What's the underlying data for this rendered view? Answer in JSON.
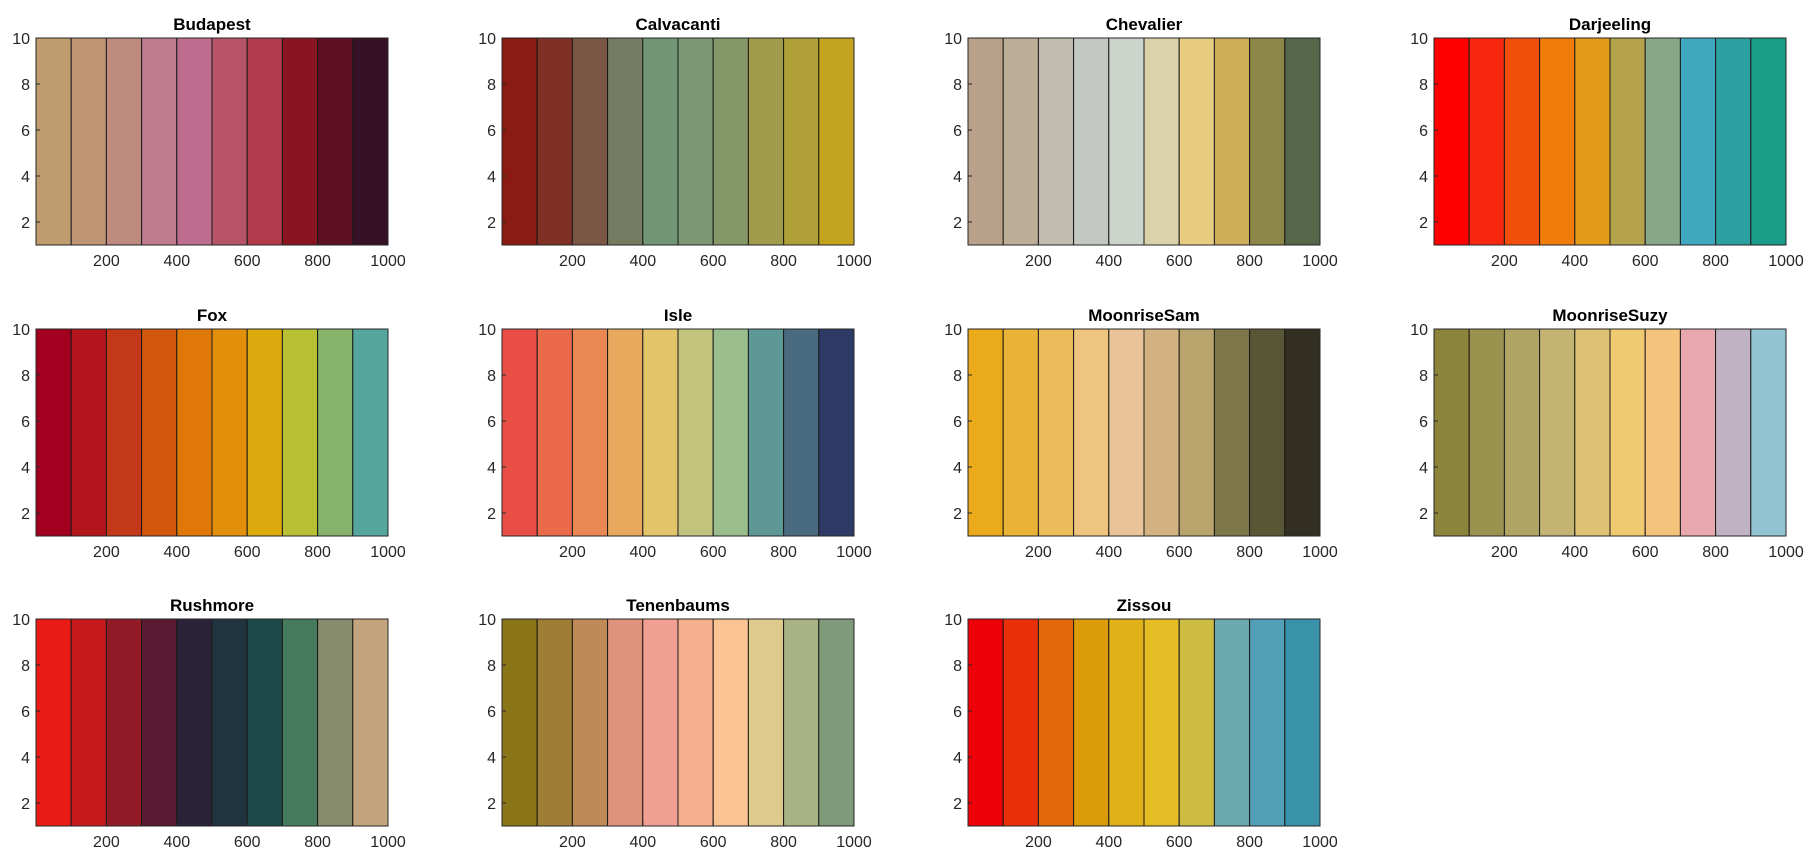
{
  "chart_data": [
    {
      "type": "heatmap",
      "title": "Budapest",
      "colors": [
        "#BF9C6E",
        "#BF9472",
        "#BF8A7E",
        "#BF7B8E",
        "#BF6D8E",
        "#B75468",
        "#B23A4A",
        "#8A1520",
        "#5E1022",
        "#361024"
      ],
      "x": [
        50,
        150,
        250,
        350,
        450,
        550,
        650,
        750,
        850,
        950
      ],
      "xlim": [
        0,
        1000
      ],
      "ylim": [
        1,
        10
      ],
      "xticks": [
        "200",
        "400",
        "600",
        "800",
        "1000"
      ],
      "yticks": [
        "2",
        "4",
        "6",
        "8",
        "10"
      ]
    },
    {
      "type": "heatmap",
      "title": "Calvacanti",
      "colors": [
        "#8B1A12",
        "#803025",
        "#7A5644",
        "#767C62",
        "#729674",
        "#7C9872",
        "#869868",
        "#A09C4C",
        "#B0A038",
        "#C4A41E"
      ],
      "x": [
        50,
        150,
        250,
        350,
        450,
        550,
        650,
        750,
        850,
        950
      ],
      "xlim": [
        0,
        1000
      ],
      "ylim": [
        1,
        10
      ],
      "xticks": [
        "200",
        "400",
        "600",
        "800",
        "1000"
      ],
      "yticks": [
        "2",
        "4",
        "6",
        "8",
        "10"
      ]
    },
    {
      "type": "heatmap",
      "title": "Chevalier",
      "colors": [
        "#B8A08A",
        "#BDAE98",
        "#C2BCAE",
        "#C4C8C2",
        "#CCD4CC",
        "#DAD2AA",
        "#E8CC80",
        "#CCAE58",
        "#8C8648",
        "#566648"
      ],
      "x": [
        50,
        150,
        250,
        350,
        450,
        550,
        650,
        750,
        850,
        950
      ],
      "xlim": [
        0,
        1000
      ],
      "ylim": [
        1,
        10
      ],
      "xticks": [
        "200",
        "400",
        "600",
        "800",
        "1000"
      ],
      "yticks": [
        "2",
        "4",
        "6",
        "8",
        "10"
      ]
    },
    {
      "type": "heatmap",
      "title": "Darjeeling",
      "colors": [
        "#FF0000",
        "#F82810",
        "#F24E0C",
        "#F27C0A",
        "#E29C1A",
        "#B4A24C",
        "#86A886",
        "#40A8BE",
        "#2CA0A0",
        "#1A9C88"
      ],
      "x": [
        50,
        150,
        250,
        350,
        450,
        550,
        650,
        750,
        850,
        950
      ],
      "xlim": [
        0,
        1000
      ],
      "ylim": [
        1,
        10
      ],
      "xticks": [
        "200",
        "400",
        "600",
        "800",
        "1000"
      ],
      "yticks": [
        "2",
        "4",
        "6",
        "8",
        "10"
      ]
    },
    {
      "type": "heatmap",
      "title": "Fox",
      "colors": [
        "#A30020",
        "#B2161C",
        "#C23818",
        "#D2580E",
        "#E07808",
        "#E2900C",
        "#DCAA0C",
        "#B8C034",
        "#86B26A",
        "#56A6A0"
      ],
      "x": [
        50,
        150,
        250,
        350,
        450,
        550,
        650,
        750,
        850,
        950
      ],
      "xlim": [
        0,
        1000
      ],
      "ylim": [
        1,
        10
      ],
      "xticks": [
        "200",
        "400",
        "600",
        "800",
        "1000"
      ],
      "yticks": [
        "2",
        "4",
        "6",
        "8",
        "10"
      ]
    },
    {
      "type": "heatmap",
      "title": "Isle",
      "colors": [
        "#E84D46",
        "#EA6A4A",
        "#EA8854",
        "#E8A85E",
        "#E2C46A",
        "#C2C47E",
        "#9ABE8E",
        "#5E9896",
        "#4A6A80",
        "#2E3A66"
      ],
      "x": [
        50,
        150,
        250,
        350,
        450,
        550,
        650,
        750,
        850,
        950
      ],
      "xlim": [
        0,
        1000
      ],
      "ylim": [
        1,
        10
      ],
      "xticks": [
        "200",
        "400",
        "600",
        "800",
        "1000"
      ],
      "yticks": [
        "2",
        "4",
        "6",
        "8",
        "10"
      ]
    },
    {
      "type": "heatmap",
      "title": "MoonriseSam",
      "colors": [
        "#EAAA1A",
        "#EAB236",
        "#ECBC5A",
        "#EEC47E",
        "#E8C498",
        "#D2B280",
        "#B8A46C",
        "#7C7648",
        "#585634",
        "#322E22"
      ],
      "x": [
        50,
        150,
        250,
        350,
        450,
        550,
        650,
        750,
        850,
        950
      ],
      "xlim": [
        0,
        1000
      ],
      "ylim": [
        1,
        10
      ],
      "xticks": [
        "200",
        "400",
        "600",
        "800",
        "1000"
      ],
      "yticks": [
        "2",
        "4",
        "6",
        "8",
        "10"
      ]
    },
    {
      "type": "heatmap",
      "title": "MoonriseSuzy",
      "colors": [
        "#8C843C",
        "#9C9250",
        "#B0A464",
        "#C4B474",
        "#DCC272",
        "#F0CA70",
        "#F4C47C",
        "#E8A8AE",
        "#C0B2C2",
        "#92C4D2"
      ],
      "x": [
        50,
        150,
        250,
        350,
        450,
        550,
        650,
        750,
        850,
        950
      ],
      "xlim": [
        0,
        1000
      ],
      "ylim": [
        1,
        10
      ],
      "xticks": [
        "200",
        "400",
        "600",
        "800",
        "1000"
      ],
      "yticks": [
        "2",
        "4",
        "6",
        "8",
        "10"
      ]
    },
    {
      "type": "heatmap",
      "title": "Rushmore",
      "colors": [
        "#EA1A14",
        "#C61A1C",
        "#921A26",
        "#5A1A32",
        "#2A2238",
        "#203440",
        "#1C4A48",
        "#467A5C",
        "#868C6C",
        "#C4A47C"
      ],
      "x": [
        50,
        150,
        250,
        350,
        450,
        550,
        650,
        750,
        850,
        950
      ],
      "xlim": [
        0,
        1000
      ],
      "ylim": [
        1,
        10
      ],
      "xticks": [
        "200",
        "400",
        "600",
        "800",
        "1000"
      ],
      "yticks": [
        "2",
        "4",
        "6",
        "8",
        "10"
      ]
    },
    {
      "type": "heatmap",
      "title": "Tenenbaums",
      "colors": [
        "#8A7618",
        "#9E7E34",
        "#BE8A58",
        "#DE947C",
        "#F2A094",
        "#F6B08E",
        "#FAC492",
        "#DECA8C",
        "#A8B284",
        "#7E9A7A"
      ],
      "x": [
        50,
        150,
        250,
        350,
        450,
        550,
        650,
        750,
        850,
        950
      ],
      "xlim": [
        0,
        1000
      ],
      "ylim": [
        1,
        10
      ],
      "xticks": [
        "200",
        "400",
        "600",
        "800",
        "1000"
      ],
      "yticks": [
        "2",
        "4",
        "6",
        "8",
        "10"
      ]
    },
    {
      "type": "heatmap",
      "title": "Zissou",
      "colors": [
        "#EE0008",
        "#EA300A",
        "#E2680A",
        "#DC9C0A",
        "#E0B21A",
        "#E4BE24",
        "#CCBC42",
        "#6CA8B0",
        "#52A0B8",
        "#3A92AA"
      ],
      "x": [
        50,
        150,
        250,
        350,
        450,
        550,
        650,
        750,
        850,
        950
      ],
      "xlim": [
        0,
        1000
      ],
      "ylim": [
        1,
        10
      ],
      "xticks": [
        "200",
        "400",
        "600",
        "800",
        "1000"
      ],
      "yticks": [
        "2",
        "4",
        "6",
        "8",
        "10"
      ]
    }
  ]
}
